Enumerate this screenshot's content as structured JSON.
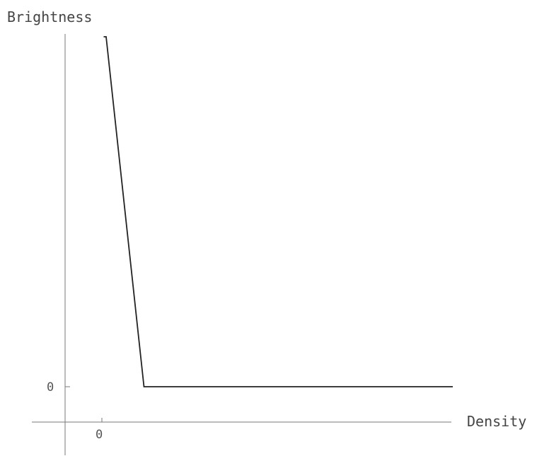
{
  "chart_data": {
    "type": "line",
    "xlabel": "Density",
    "ylabel": "Brightness",
    "x_ticks": [
      "0"
    ],
    "y_ticks": [
      "0"
    ],
    "grid": false,
    "legend": "none",
    "line_color": "#222222",
    "axis_color": "#7a7a7a",
    "series": [
      {
        "points": [
          {
            "x": 0.05,
            "y": 1.0
          },
          {
            "x": 0.12,
            "y": 1.0
          },
          {
            "x": 1.2,
            "y": 0.0
          },
          {
            "x": 10.0,
            "y": 0.0
          }
        ]
      }
    ],
    "xlim": [
      -1.0,
      12.0
    ],
    "ylim": [
      -0.11,
      1.1
    ]
  }
}
